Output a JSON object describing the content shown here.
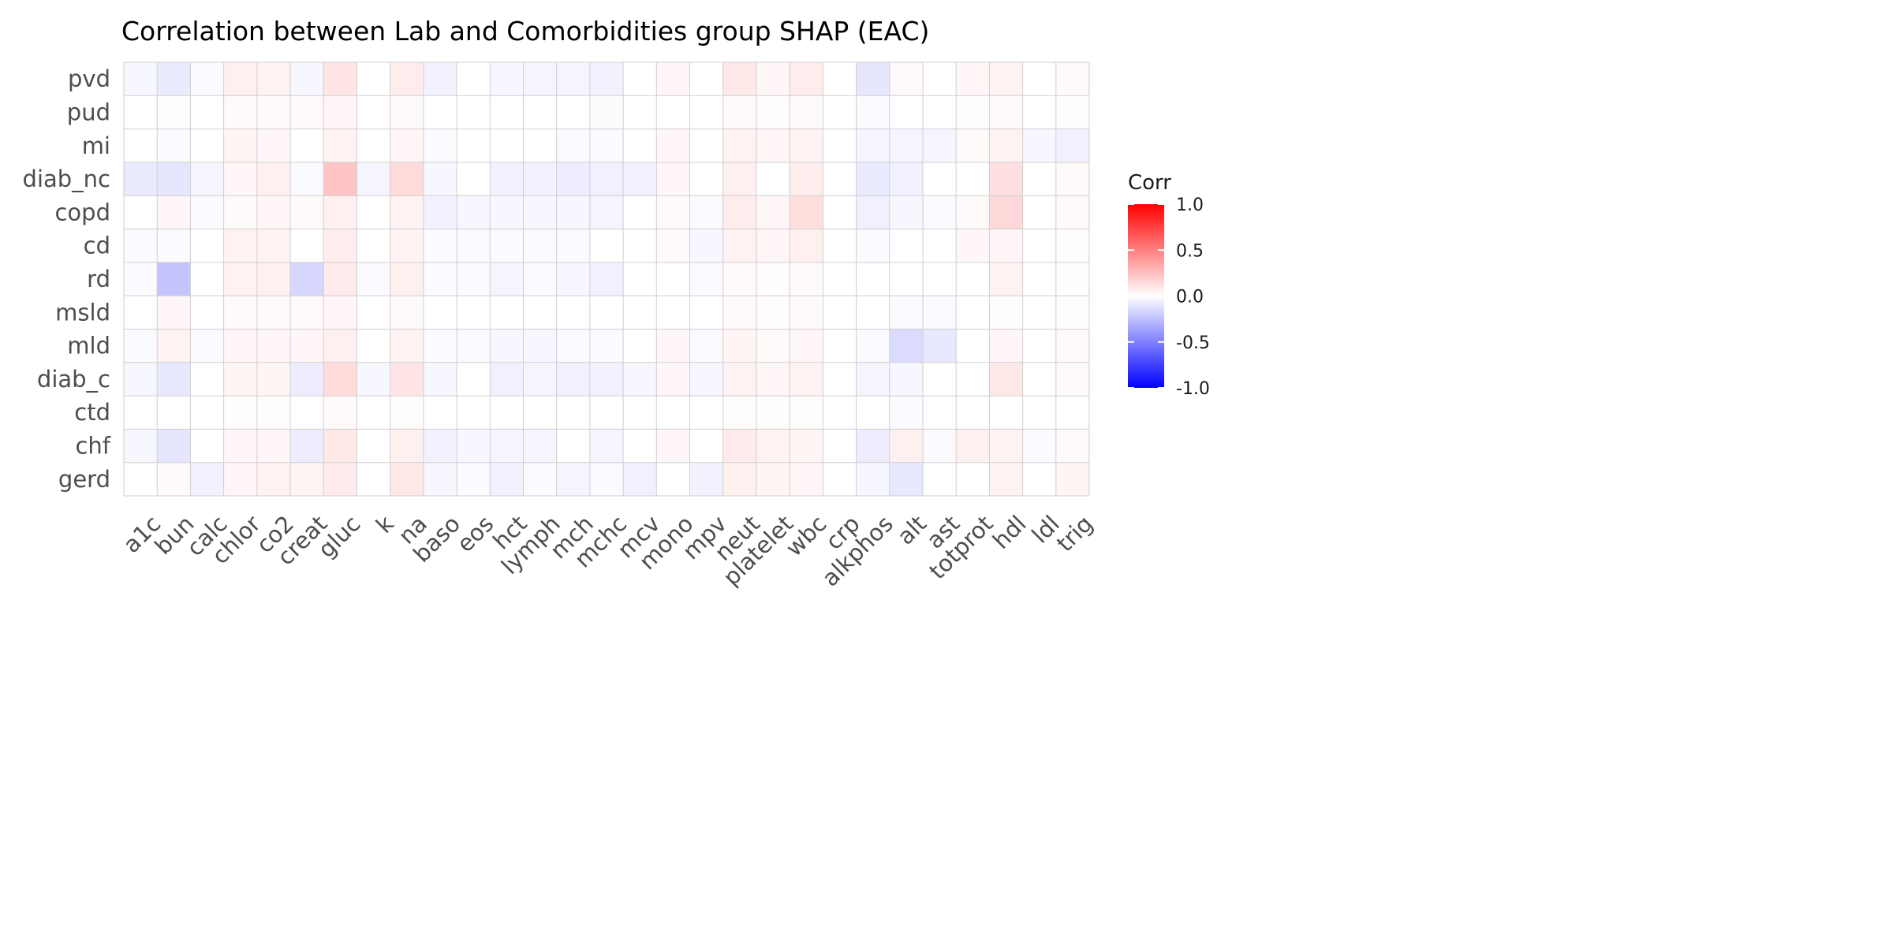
{
  "chart_data": {
    "type": "heatmap",
    "title": "Correlation between Lab and Comorbidities group SHAP (EAC)",
    "xlabel": "",
    "ylabel": "",
    "x": [
      "a1c",
      "bun",
      "calc",
      "chlor",
      "co2",
      "creat",
      "gluc",
      "k",
      "na",
      "baso",
      "eos",
      "hct",
      "lymph",
      "mch",
      "mchc",
      "mcv",
      "mono",
      "mpv",
      "neut",
      "platelet",
      "wbc",
      "crp",
      "alkphos",
      "alt",
      "ast",
      "totprot",
      "hdl",
      "ldl",
      "trig"
    ],
    "y": [
      "pvd",
      "pud",
      "mi",
      "diab_nc",
      "copd",
      "cd",
      "rd",
      "msld",
      "mld",
      "diab_c",
      "ctd",
      "chf",
      "gerd"
    ],
    "values": [
      [
        -0.03,
        -0.08,
        -0.02,
        0.06,
        0.05,
        -0.03,
        0.1,
        0.0,
        0.07,
        -0.05,
        0.0,
        -0.03,
        -0.04,
        -0.04,
        -0.05,
        0.0,
        0.03,
        0.0,
        0.09,
        0.03,
        0.07,
        0.0,
        -0.1,
        0.02,
        0.0,
        0.03,
        0.05,
        0.0,
        0.02
      ],
      [
        0.0,
        0.01,
        0.0,
        0.02,
        0.02,
        0.02,
        0.03,
        0.0,
        0.02,
        0.0,
        0.0,
        0.0,
        0.0,
        0.0,
        -0.01,
        0.0,
        0.0,
        0.0,
        0.02,
        0.01,
        0.02,
        0.0,
        -0.02,
        0.0,
        0.0,
        0.01,
        0.02,
        0.0,
        0.01
      ],
      [
        0.0,
        -0.02,
        0.0,
        0.04,
        0.03,
        0.0,
        0.05,
        0.0,
        0.03,
        -0.02,
        0.0,
        0.0,
        0.0,
        -0.02,
        -0.02,
        0.0,
        0.03,
        0.0,
        0.05,
        0.03,
        0.05,
        0.0,
        -0.04,
        -0.04,
        -0.04,
        0.02,
        0.05,
        -0.03,
        -0.06
      ],
      [
        -0.08,
        -0.1,
        -0.04,
        0.03,
        0.06,
        -0.02,
        0.23,
        -0.04,
        0.14,
        -0.03,
        0.0,
        -0.05,
        -0.05,
        -0.07,
        -0.06,
        -0.05,
        0.03,
        0.0,
        0.06,
        0.0,
        0.07,
        0.0,
        -0.08,
        -0.06,
        0.0,
        0.0,
        0.12,
        0.0,
        0.02
      ],
      [
        0.0,
        0.03,
        -0.02,
        0.02,
        0.03,
        0.02,
        0.06,
        0.0,
        0.05,
        -0.05,
        -0.03,
        -0.03,
        -0.03,
        -0.03,
        -0.04,
        0.0,
        0.02,
        -0.02,
        0.07,
        0.03,
        0.13,
        0.0,
        -0.06,
        -0.03,
        -0.02,
        0.02,
        0.15,
        0.0,
        0.02
      ],
      [
        -0.02,
        -0.02,
        0.0,
        0.05,
        0.05,
        0.0,
        0.07,
        0.0,
        0.05,
        -0.02,
        -0.02,
        -0.02,
        -0.02,
        -0.02,
        0.0,
        0.0,
        0.02,
        -0.03,
        0.05,
        0.03,
        0.06,
        0.0,
        -0.02,
        0.0,
        0.0,
        0.03,
        0.03,
        0.0,
        0.01
      ],
      [
        -0.02,
        -0.23,
        0.0,
        0.05,
        0.06,
        -0.16,
        0.08,
        -0.02,
        0.06,
        -0.02,
        -0.02,
        -0.04,
        -0.02,
        -0.03,
        -0.06,
        0.0,
        0.0,
        -0.02,
        0.02,
        0.01,
        0.02,
        0.0,
        0.0,
        0.0,
        0.0,
        0.0,
        0.05,
        0.0,
        0.01
      ],
      [
        0.0,
        0.03,
        0.0,
        0.02,
        0.02,
        0.02,
        0.03,
        0.0,
        0.02,
        0.0,
        0.0,
        0.0,
        0.0,
        0.0,
        0.0,
        0.0,
        0.0,
        0.0,
        0.02,
        0.01,
        0.02,
        0.0,
        0.0,
        -0.02,
        -0.02,
        0.0,
        0.01,
        0.0,
        0.01
      ],
      [
        -0.02,
        0.05,
        -0.02,
        0.03,
        0.03,
        0.03,
        0.06,
        0.0,
        0.05,
        -0.02,
        -0.02,
        -0.03,
        -0.03,
        -0.02,
        -0.02,
        0.0,
        0.03,
        -0.02,
        0.04,
        0.02,
        0.03,
        0.0,
        -0.02,
        -0.14,
        -0.09,
        0.0,
        0.03,
        0.0,
        0.02
      ],
      [
        -0.03,
        -0.09,
        0.0,
        0.04,
        0.04,
        -0.07,
        0.14,
        -0.03,
        0.1,
        -0.03,
        0.0,
        -0.06,
        -0.04,
        -0.06,
        -0.05,
        -0.03,
        0.03,
        -0.03,
        0.05,
        0.03,
        0.05,
        0.0,
        -0.04,
        -0.03,
        0.0,
        0.0,
        0.09,
        0.0,
        0.02
      ],
      [
        0.0,
        0.0,
        0.0,
        0.01,
        0.01,
        0.0,
        0.02,
        0.0,
        0.01,
        0.0,
        0.0,
        0.0,
        0.0,
        0.0,
        0.0,
        0.0,
        0.0,
        0.0,
        0.01,
        0.01,
        0.01,
        0.0,
        0.0,
        -0.02,
        0.0,
        0.0,
        0.0,
        0.0,
        0.0
      ],
      [
        -0.03,
        -0.1,
        0.0,
        0.03,
        0.03,
        -0.07,
        0.09,
        0.0,
        0.06,
        -0.05,
        -0.03,
        -0.04,
        -0.04,
        0.0,
        -0.04,
        0.0,
        0.03,
        0.0,
        0.08,
        0.05,
        0.04,
        0.0,
        -0.07,
        0.06,
        -0.02,
        0.06,
        0.05,
        -0.02,
        0.02
      ],
      [
        0.0,
        0.02,
        -0.05,
        0.03,
        0.05,
        0.04,
        0.08,
        0.0,
        0.09,
        -0.03,
        -0.02,
        -0.05,
        -0.02,
        -0.04,
        -0.02,
        -0.06,
        0.0,
        -0.05,
        0.06,
        0.04,
        0.03,
        0.0,
        -0.03,
        -0.09,
        0.0,
        0.0,
        0.05,
        0.0,
        0.04
      ]
    ],
    "color_scale": {
      "low": "#0000ff",
      "mid": "#ffffff",
      "high": "#ff0000",
      "limits": [
        -1,
        1
      ]
    },
    "grid": true,
    "legend": {
      "title": "Corr",
      "position": "right",
      "ticks": [
        1.0,
        0.5,
        0.0,
        -0.5,
        -1.0
      ],
      "tick_labels": [
        "1.0",
        "0.5",
        "0.0",
        "-0.5",
        "-1.0"
      ]
    }
  }
}
